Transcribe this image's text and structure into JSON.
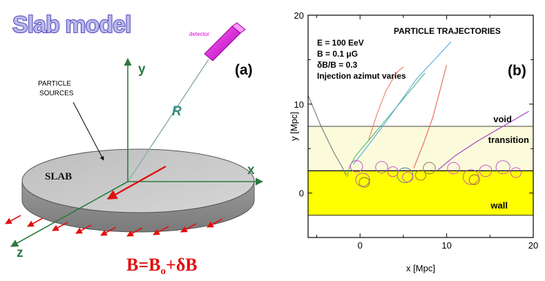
{
  "panel_a": {
    "title": "Slab model",
    "detector_label": "detector",
    "axis_y": "y",
    "axis_x": "x",
    "axis_z": "z",
    "distance_label": "R",
    "panel_label": "(a)",
    "sources_label_line1": "PARTICLE",
    "sources_label_line2": "SOURCES",
    "slab_label": "SLAB",
    "equation": {
      "B": "B=B",
      "sub": "o",
      "rest": "+δB"
    },
    "colors": {
      "slab_top": "#c9c9c9",
      "slab_side": "#8f8f8f",
      "axes": "#2c7a3e",
      "field_arrows": "#e01010",
      "detector": "#dd22dd"
    }
  },
  "panel_b": {
    "panel_label": "(b)",
    "chart_data": {
      "type": "line",
      "title": "PARTICLE TRAJECTORIES",
      "xlabel": "x [Mpc]",
      "ylabel": "y [Mpc]",
      "xlim": [
        -6,
        20
      ],
      "ylim": [
        -5,
        20
      ],
      "xticks": [
        "0",
        "10",
        "20"
      ],
      "yticks": [
        "0",
        "10",
        "20"
      ],
      "parameters": [
        "E = 100 EeV",
        "B = 0.1 μG",
        "δB/B = 0.3",
        "Injection azimut varies"
      ],
      "regions": [
        {
          "name": "wall",
          "y_from": -2.5,
          "y_to": 2.5,
          "color": "#ffff00"
        },
        {
          "name": "transition",
          "y_from": 2.5,
          "y_to": 7.5,
          "color": "#fbfbdc"
        },
        {
          "name": "void",
          "y_from": 7.5,
          "y_to": 20,
          "color": "#ffffff"
        }
      ],
      "boundaries": [
        -2.5,
        2.5,
        7.5
      ],
      "series": [
        {
          "name": "trajectory-green",
          "color": "#44b870",
          "x": [
            -1.5,
            -1.2,
            -0.5,
            1.5,
            4.5,
            7.5
          ],
          "y": [
            1.8,
            3.0,
            4.2,
            6.5,
            10.0,
            13.5
          ]
        },
        {
          "name": "trajectory-blue",
          "color": "#5aa6e0",
          "x": [
            -0.8,
            0.5,
            3.0,
            6.5,
            10.5
          ],
          "y": [
            3.2,
            4.8,
            8.0,
            12.8,
            17.0
          ]
        },
        {
          "name": "trajectory-salmon",
          "color": "#ee7d5a",
          "x": [
            1.0,
            2.0,
            3.0,
            4.2,
            5.0
          ],
          "y": [
            6.0,
            9.0,
            11.5,
            13.5,
            14.2
          ]
        },
        {
          "name": "trajectory-red",
          "color": "#e86250",
          "x": [
            6.2,
            7.3,
            8.4,
            9.3,
            10.0
          ],
          "y": [
            2.8,
            5.5,
            8.5,
            11.8,
            14.4
          ]
        },
        {
          "name": "trajectory-grey",
          "color": "#6f7a76",
          "x": [
            -6.0,
            -4.5,
            -3.0,
            -2.0,
            -1.6
          ],
          "y": [
            11.0,
            7.5,
            4.5,
            2.8,
            2.0
          ]
        },
        {
          "name": "trajectory-purple",
          "color": "#a040c8",
          "x": [
            9.0,
            11.0,
            13.5,
            16.5,
            19.5
          ],
          "y": [
            2.6,
            4.2,
            5.8,
            7.5,
            9.2
          ]
        }
      ],
      "loops": [
        {
          "cx": 0.3,
          "cy": 1.5,
          "r": 0.8,
          "color": "#b050c0"
        },
        {
          "cx": 0.5,
          "cy": 1.2,
          "r": 0.6,
          "color": "#7a6a3a"
        },
        {
          "cx": 5.2,
          "cy": 2.0,
          "r": 0.9,
          "color": "#4a7a9a"
        },
        {
          "cx": 5.5,
          "cy": 1.8,
          "r": 0.6,
          "color": "#cc44cc"
        },
        {
          "cx": 12.8,
          "cy": 1.8,
          "r": 0.9,
          "color": "#b050c0"
        },
        {
          "cx": 13.2,
          "cy": 1.5,
          "r": 0.6,
          "color": "#a06030"
        },
        {
          "cx": 2.5,
          "cy": 2.9,
          "r": 0.7,
          "color": "#b050c0"
        },
        {
          "cx": 8.0,
          "cy": 2.8,
          "r": 0.7,
          "color": "#7a6a3a"
        },
        {
          "cx": 10.8,
          "cy": 2.8,
          "r": 0.7,
          "color": "#cc44cc"
        },
        {
          "cx": 16.5,
          "cy": 2.9,
          "r": 0.8,
          "color": "#b050c0"
        },
        {
          "cx": -0.4,
          "cy": 3.0,
          "r": 0.7,
          "color": "#cc44cc"
        },
        {
          "cx": 3.8,
          "cy": 2.4,
          "r": 0.6,
          "color": "#cc44cc"
        },
        {
          "cx": 7.0,
          "cy": 2.0,
          "r": 0.6,
          "color": "#a06030"
        },
        {
          "cx": 14.5,
          "cy": 2.5,
          "r": 0.7,
          "color": "#cc44cc"
        },
        {
          "cx": 18.0,
          "cy": 2.3,
          "r": 0.6,
          "color": "#cc44cc"
        }
      ]
    }
  }
}
